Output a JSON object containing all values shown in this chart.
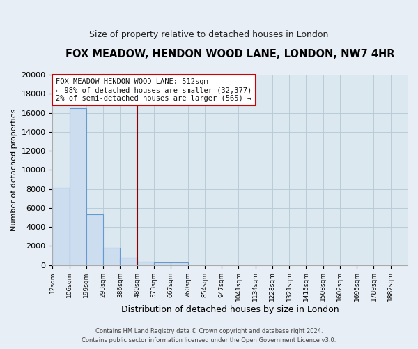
{
  "title": "FOX MEADOW, HENDON WOOD LANE, LONDON, NW7 4HR",
  "subtitle": "Size of property relative to detached houses in London",
  "xlabel": "Distribution of detached houses by size in London",
  "ylabel": "Number of detached properties",
  "bar_color": "#ccddf0",
  "bar_edgecolor": "#6699cc",
  "categories": [
    "12sqm",
    "106sqm",
    "199sqm",
    "293sqm",
    "386sqm",
    "480sqm",
    "573sqm",
    "667sqm",
    "760sqm",
    "854sqm",
    "947sqm",
    "1041sqm",
    "1134sqm",
    "1228sqm",
    "1321sqm",
    "1415sqm",
    "1508sqm",
    "1602sqm",
    "1695sqm",
    "1789sqm",
    "1882sqm"
  ],
  "values": [
    8100,
    16500,
    5300,
    1800,
    750,
    350,
    300,
    250,
    0,
    0,
    0,
    0,
    0,
    0,
    0,
    0,
    0,
    0,
    0,
    0,
    0
  ],
  "ylim": [
    0,
    20000
  ],
  "yticks": [
    0,
    2000,
    4000,
    6000,
    8000,
    10000,
    12000,
    14000,
    16000,
    18000,
    20000
  ],
  "vline_x": 4.5,
  "vline_color": "#8b0000",
  "annotation_line1": "FOX MEADOW HENDON WOOD LANE: 512sqm",
  "annotation_line2": "← 98% of detached houses are smaller (32,377)",
  "annotation_line3": "2% of semi-detached houses are larger (565) →",
  "footer_line1": "Contains HM Land Registry data © Crown copyright and database right 2024.",
  "footer_line2": "Contains public sector information licensed under the Open Government Licence v3.0.",
  "background_color": "#e8eef5",
  "plot_bg_color": "#dce8f0",
  "grid_color": "#b8ccd8",
  "title_fontsize": 10.5,
  "subtitle_fontsize": 9,
  "ylabel_fontsize": 8,
  "xlabel_fontsize": 9
}
